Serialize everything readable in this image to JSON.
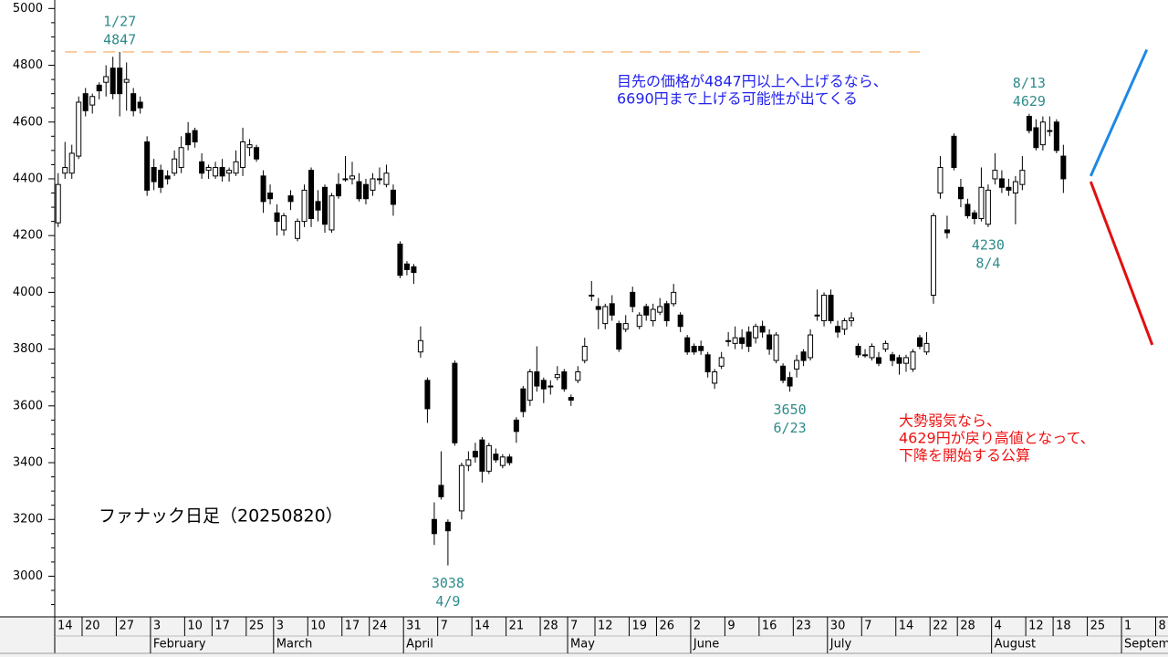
{
  "chart_data": {
    "type": "candlestick",
    "title": "ファナック日足（20250820）",
    "ylim": [
      2860,
      5030
    ],
    "yticks": [
      3000,
      3200,
      3400,
      3600,
      3800,
      4000,
      4200,
      4400,
      4600,
      4800,
      5000
    ],
    "yminor_ticks": [
      2900,
      2950,
      3050,
      3100,
      3150,
      3250,
      3300,
      3350,
      3450,
      3500,
      3550,
      3650,
      3700,
      3750,
      3850,
      3900,
      3950,
      4050,
      4100,
      4150,
      4250,
      4300,
      4350,
      4450,
      4500,
      4550,
      4650,
      4700,
      4750,
      4850,
      4900,
      4950
    ],
    "xlim": [
      -0.5,
      162.3
    ],
    "xticks": [
      {
        "value": 0,
        "label": "14"
      },
      {
        "value": 4,
        "label": "20"
      },
      {
        "value": 9,
        "label": "27"
      },
      {
        "value": 14,
        "label": "3"
      },
      {
        "value": 19,
        "label": "10"
      },
      {
        "value": 23,
        "label": "17"
      },
      {
        "value": 28,
        "label": "25"
      },
      {
        "value": 32,
        "label": "3"
      },
      {
        "value": 37,
        "label": "10"
      },
      {
        "value": 42,
        "label": "17"
      },
      {
        "value": 46,
        "label": "24"
      },
      {
        "value": 51,
        "label": "31"
      },
      {
        "value": 56,
        "label": "7"
      },
      {
        "value": 61,
        "label": "14"
      },
      {
        "value": 66,
        "label": "21"
      },
      {
        "value": 71,
        "label": "28"
      },
      {
        "value": 75,
        "label": "7"
      },
      {
        "value": 79,
        "label": "12"
      },
      {
        "value": 84,
        "label": "19"
      },
      {
        "value": 88,
        "label": "26"
      },
      {
        "value": 93,
        "label": "2"
      },
      {
        "value": 98,
        "label": "9"
      },
      {
        "value": 103,
        "label": "16"
      },
      {
        "value": 108,
        "label": "23"
      },
      {
        "value": 113,
        "label": "30"
      },
      {
        "value": 118,
        "label": "7"
      },
      {
        "value": 123,
        "label": "14"
      },
      {
        "value": 128,
        "label": "22"
      },
      {
        "value": 132,
        "label": "28"
      },
      {
        "value": 137,
        "label": "4"
      },
      {
        "value": 142,
        "label": "12"
      },
      {
        "value": 146,
        "label": "18"
      },
      {
        "value": 151,
        "label": "25"
      },
      {
        "value": 156,
        "label": "1"
      },
      {
        "value": 161,
        "label": "8"
      }
    ],
    "month_ticks": [
      {
        "value": 14,
        "label": "February"
      },
      {
        "value": 32,
        "label": "March"
      },
      {
        "value": 51,
        "label": "April"
      },
      {
        "value": 75,
        "label": "May"
      },
      {
        "value": 93,
        "label": "June"
      },
      {
        "value": 113,
        "label": "July"
      },
      {
        "value": 137,
        "label": "August"
      },
      {
        "value": 156,
        "label": "Septem"
      }
    ],
    "colors": {
      "up": "#ffffff",
      "down": "#000000",
      "edge": "#000000"
    },
    "open": [
      4245,
      4420,
      4420,
      4480,
      4700,
      4660,
      4730,
      4740,
      4790,
      4790,
      4740,
      4700,
      4670,
      4530,
      4440,
      4430,
      4410,
      4420,
      4440,
      4560,
      4570,
      4460,
      4430,
      4410,
      4440,
      4420,
      4420,
      4440,
      4510,
      4510,
      4410,
      4350,
      4280,
      4220,
      4340,
      4190,
      4250,
      4430,
      4320,
      4370,
      4220,
      4380,
      4400,
      4400,
      4390,
      4380,
      4360,
      4400,
      4380,
      4360,
      4170,
      4100,
      4090,
      3790,
      3690,
      3200,
      3320,
      3190,
      3750,
      3230,
      3390,
      3440,
      3480,
      3370,
      3430,
      3390,
      3420,
      3550,
      3660,
      3620,
      3720,
      3690,
      3670,
      3700,
      3720,
      3630,
      3690,
      3760,
      3990,
      3950,
      3890,
      3960,
      3890,
      3870,
      4000,
      3880,
      3950,
      3900,
      3930,
      3960,
      3960,
      3920,
      3840,
      3810,
      3810,
      3780,
      3680,
      3740,
      3830,
      3820,
      3840,
      3860,
      3840,
      3880,
      3850,
      3760,
      3740,
      3700,
      3730,
      3790,
      3770,
      3920,
      3900,
      3990,
      3880,
      3870,
      3900,
      3810,
      3780,
      3770,
      3770,
      3800,
      3780,
      3770,
      3750,
      3730,
      3840,
      3790,
      3990,
      4350,
      4220,
      4550,
      4370,
      4310,
      4280,
      4260,
      4240,
      4400,
      4400,
      4370,
      4350,
      4380,
      4620,
      4580,
      4520,
      4570,
      4600,
      4480
    ],
    "high": [
      4420,
      4530,
      4520,
      4690,
      4720,
      4700,
      4740,
      4800,
      4830,
      4847,
      4810,
      4720,
      4690,
      4550,
      4470,
      4450,
      4430,
      4500,
      4550,
      4600,
      4580,
      4490,
      4450,
      4460,
      4470,
      4440,
      4500,
      4580,
      4540,
      4520,
      4430,
      4380,
      4310,
      4280,
      4360,
      4260,
      4380,
      4440,
      4360,
      4380,
      4350,
      4420,
      4480,
      4460,
      4420,
      4400,
      4420,
      4440,
      4450,
      4380,
      4180,
      4110,
      4100,
      3880,
      3700,
      3260,
      3440,
      3200,
      3760,
      3400,
      3440,
      3470,
      3490,
      3470,
      3450,
      3430,
      3430,
      3560,
      3670,
      3730,
      3810,
      3700,
      3690,
      3740,
      3730,
      3640,
      3740,
      3840,
      4040,
      3980,
      3960,
      3990,
      3900,
      3920,
      4020,
      3930,
      3960,
      3960,
      3980,
      3970,
      4030,
      3930,
      3850,
      3820,
      3830,
      3790,
      3730,
      3790,
      3860,
      3880,
      3870,
      3880,
      3890,
      3900,
      3870,
      3860,
      3750,
      3720,
      3780,
      3800,
      3870,
      4010,
      4000,
      4010,
      3900,
      3910,
      3930,
      3820,
      3800,
      3820,
      3790,
      3830,
      3790,
      3780,
      3780,
      3800,
      3850,
      3860,
      4280,
      4480,
      4270,
      4560,
      4400,
      4330,
      4290,
      4440,
      4380,
      4490,
      4430,
      4400,
      4410,
      4480,
      4629,
      4610,
      4620,
      4620,
      4610,
      4520
    ],
    "low": [
      4230,
      4400,
      4400,
      4470,
      4620,
      4630,
      4680,
      4690,
      4680,
      4620,
      4640,
      4620,
      4630,
      4340,
      4360,
      4350,
      4380,
      4410,
      4420,
      4500,
      4510,
      4400,
      4400,
      4400,
      4390,
      4390,
      4410,
      4410,
      4480,
      4460,
      4280,
      4310,
      4200,
      4200,
      4290,
      4180,
      4230,
      4230,
      4250,
      4210,
      4210,
      4330,
      4390,
      4380,
      4320,
      4310,
      4340,
      4380,
      4370,
      4270,
      4050,
      4060,
      4030,
      3770,
      3540,
      3110,
      3270,
      3038,
      3460,
      3200,
      3370,
      3400,
      3330,
      3360,
      3400,
      3380,
      3390,
      3470,
      3560,
      3600,
      3650,
      3610,
      3640,
      3690,
      3650,
      3600,
      3680,
      3750,
      3970,
      3870,
      3870,
      3900,
      3790,
      3860,
      3930,
      3870,
      3900,
      3880,
      3920,
      3880,
      3950,
      3860,
      3780,
      3780,
      3780,
      3700,
      3660,
      3730,
      3810,
      3800,
      3800,
      3790,
      3820,
      3840,
      3780,
      3750,
      3680,
      3650,
      3700,
      3740,
      3760,
      3900,
      3880,
      3890,
      3840,
      3850,
      3880,
      3770,
      3770,
      3760,
      3740,
      3790,
      3740,
      3710,
      3720,
      3720,
      3800,
      3780,
      3960,
      4330,
      4190,
      4430,
      4300,
      4260,
      4240,
      4250,
      4230,
      4380,
      4350,
      4340,
      4240,
      4360,
      4560,
      4500,
      4500,
      4550,
      4490,
      4350
    ],
    "close": [
      4380,
      4440,
      4490,
      4670,
      4640,
      4690,
      4710,
      4760,
      4700,
      4700,
      4750,
      4640,
      4650,
      4360,
      4390,
      4370,
      4400,
      4470,
      4510,
      4520,
      4530,
      4420,
      4440,
      4440,
      4410,
      4430,
      4460,
      4530,
      4520,
      4470,
      4320,
      4330,
      4250,
      4270,
      4320,
      4250,
      4360,
      4260,
      4290,
      4240,
      4340,
      4340,
      4400,
      4410,
      4330,
      4330,
      4400,
      4400,
      4420,
      4310,
      4060,
      4080,
      4070,
      3830,
      3590,
      3150,
      3280,
      3160,
      3470,
      3390,
      3410,
      3420,
      3370,
      3460,
      3410,
      3420,
      3400,
      3510,
      3580,
      3720,
      3670,
      3660,
      3670,
      3710,
      3660,
      3620,
      3720,
      3810,
      3990,
      3940,
      3950,
      3920,
      3800,
      3890,
      3950,
      3920,
      3920,
      3940,
      3950,
      3900,
      4000,
      3880,
      3790,
      3790,
      3795,
      3720,
      3720,
      3770,
      3830,
      3840,
      3820,
      3810,
      3880,
      3860,
      3800,
      3850,
      3690,
      3670,
      3760,
      3760,
      3850,
      3920,
      3990,
      3900,
      3860,
      3900,
      3910,
      3780,
      3780,
      3810,
      3750,
      3820,
      3760,
      3750,
      3770,
      3790,
      3810,
      3820,
      4270,
      4440,
      4210,
      4440,
      4330,
      4270,
      4260,
      4370,
      4360,
      4430,
      4370,
      4360,
      4390,
      4430,
      4570,
      4510,
      4600,
      4570,
      4500,
      4400
    ],
    "reference_line": {
      "value": 4847,
      "from": 1,
      "to": 127,
      "color": "#f5a55a"
    },
    "annotations": [
      {
        "lines": [
          "1/27",
          "4847"
        ],
        "index": 9,
        "value": 4847,
        "position": "above",
        "color": "#2e8b8b"
      },
      {
        "lines": [
          "3038",
          "4/9"
        ],
        "index": 57,
        "value": 3038,
        "position": "below",
        "color": "#2e8b8b"
      },
      {
        "lines": [
          "3650",
          "6/23"
        ],
        "index": 107,
        "value": 3650,
        "position": "below",
        "color": "#2e8b8b"
      },
      {
        "lines": [
          "4230",
          "8/4"
        ],
        "index": 136,
        "value": 4230,
        "position": "below",
        "color": "#2e8b8b"
      },
      {
        "lines": [
          "8/13",
          "4629"
        ],
        "index": 142,
        "value": 4629,
        "position": "above",
        "color": "#2e8b8b"
      }
    ],
    "projections": [
      {
        "from": [
          151,
          4410
        ],
        "to": [
          159.2,
          4855
        ],
        "color": "#1e88e5"
      },
      {
        "from": [
          151,
          4390
        ],
        "to": [
          160,
          3815
        ],
        "color": "#e01010"
      }
    ],
    "notes": [
      {
        "lines": [
          "目先の価格が4847円以上へ上げるなら、",
          "6690円まで上げる可能性が出てくる"
        ],
        "color": "#2222ee"
      },
      {
        "lines": [
          "大勢弱気なら、",
          "4629円が戻り高値となって、",
          "下降を開始する公算"
        ],
        "color": "#ee1111"
      }
    ]
  }
}
